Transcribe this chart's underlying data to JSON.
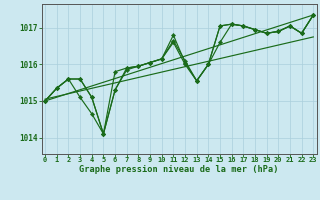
{
  "title": "Graphe pression niveau de la mer (hPa)",
  "bg_color": "#cce8f0",
  "grid_color": "#aacfdc",
  "line_color": "#1a6b1a",
  "x_ticks": [
    0,
    1,
    2,
    3,
    4,
    5,
    6,
    7,
    8,
    9,
    10,
    11,
    12,
    13,
    14,
    15,
    16,
    17,
    18,
    19,
    20,
    21,
    22,
    23
  ],
  "y_ticks": [
    1014,
    1015,
    1016,
    1017
  ],
  "ylim": [
    1013.55,
    1017.65
  ],
  "xlim": [
    -0.3,
    23.3
  ],
  "series1": [
    1015.0,
    1015.35,
    1015.6,
    1015.1,
    1014.65,
    1014.1,
    1015.3,
    1015.85,
    1015.95,
    1016.05,
    1016.15,
    1016.6,
    1016.0,
    1015.55,
    1016.0,
    1016.6,
    1017.1,
    1017.05,
    1016.95,
    1016.85,
    1016.9,
    1017.05,
    1016.85,
    1017.35
  ],
  "series2": [
    1015.0,
    1015.35,
    1015.6,
    1015.6,
    1015.1,
    1014.1,
    1015.8,
    1015.9,
    1015.95,
    1016.05,
    1016.15,
    1016.65,
    1016.1,
    1015.55,
    1016.0,
    1017.05,
    1017.1,
    1017.05,
    1016.95,
    1016.85,
    1016.9,
    1017.05,
    1016.85,
    1017.35
  ],
  "series3": [
    1015.0,
    1015.35,
    1015.6,
    1015.6,
    1015.1,
    1014.1,
    1015.3,
    1015.9,
    1015.95,
    1016.05,
    1016.15,
    1016.8,
    1016.05,
    1015.55,
    1016.0,
    1017.05,
    1017.1,
    1017.05,
    1016.95,
    1016.85,
    1016.9,
    1017.05,
    1016.85,
    1017.35
  ],
  "trend1": [
    1015.0,
    1017.35
  ],
  "trend2": [
    1015.05,
    1016.75
  ]
}
